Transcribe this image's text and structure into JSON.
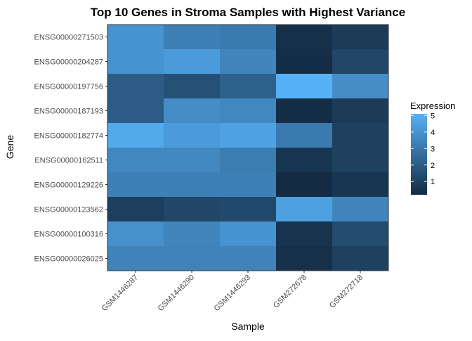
{
  "chart_data": {
    "type": "heatmap",
    "title": "Top 10 Genes in Stroma Samples with Highest Variance",
    "xlabel": "Sample",
    "ylabel": "Gene",
    "x_categories": [
      "GSM1446287",
      "GSM1446290",
      "GSM1446293",
      "GSM272678",
      "GSM272718"
    ],
    "y_categories": [
      "ENSG00000271503",
      "ENSG00000204287",
      "ENSG00000197756",
      "ENSG00000187193",
      "ENSG00000182774",
      "ENSG00000162511",
      "ENSG00000129226",
      "ENSG00000123562",
      "ENSG00000100316",
      "ENSG00000026025"
    ],
    "values": [
      [
        4.0,
        3.3,
        3.1,
        0.4,
        0.8
      ],
      [
        4.0,
        4.3,
        3.5,
        0.3,
        1.2
      ],
      [
        2.0,
        1.6,
        2.2,
        5.1,
        3.8
      ],
      [
        2.0,
        3.8,
        3.6,
        0.3,
        0.8
      ],
      [
        4.8,
        4.3,
        4.6,
        3.1,
        1.0
      ],
      [
        3.6,
        3.6,
        3.2,
        0.6,
        1.0
      ],
      [
        3.3,
        3.3,
        3.3,
        0.2,
        0.6
      ],
      [
        0.9,
        1.2,
        1.3,
        4.5,
        3.5
      ],
      [
        3.9,
        3.5,
        4.0,
        0.5,
        1.4
      ],
      [
        3.4,
        3.4,
        3.4,
        0.4,
        1.0
      ]
    ],
    "legend": {
      "title": "Expression",
      "ticks": [
        1,
        2,
        3,
        4,
        5
      ],
      "range": [
        0.2,
        5.1
      ],
      "placement": "right"
    },
    "colors": {
      "low": "#132b43",
      "high": "#56b1f7"
    },
    "grid": true
  }
}
